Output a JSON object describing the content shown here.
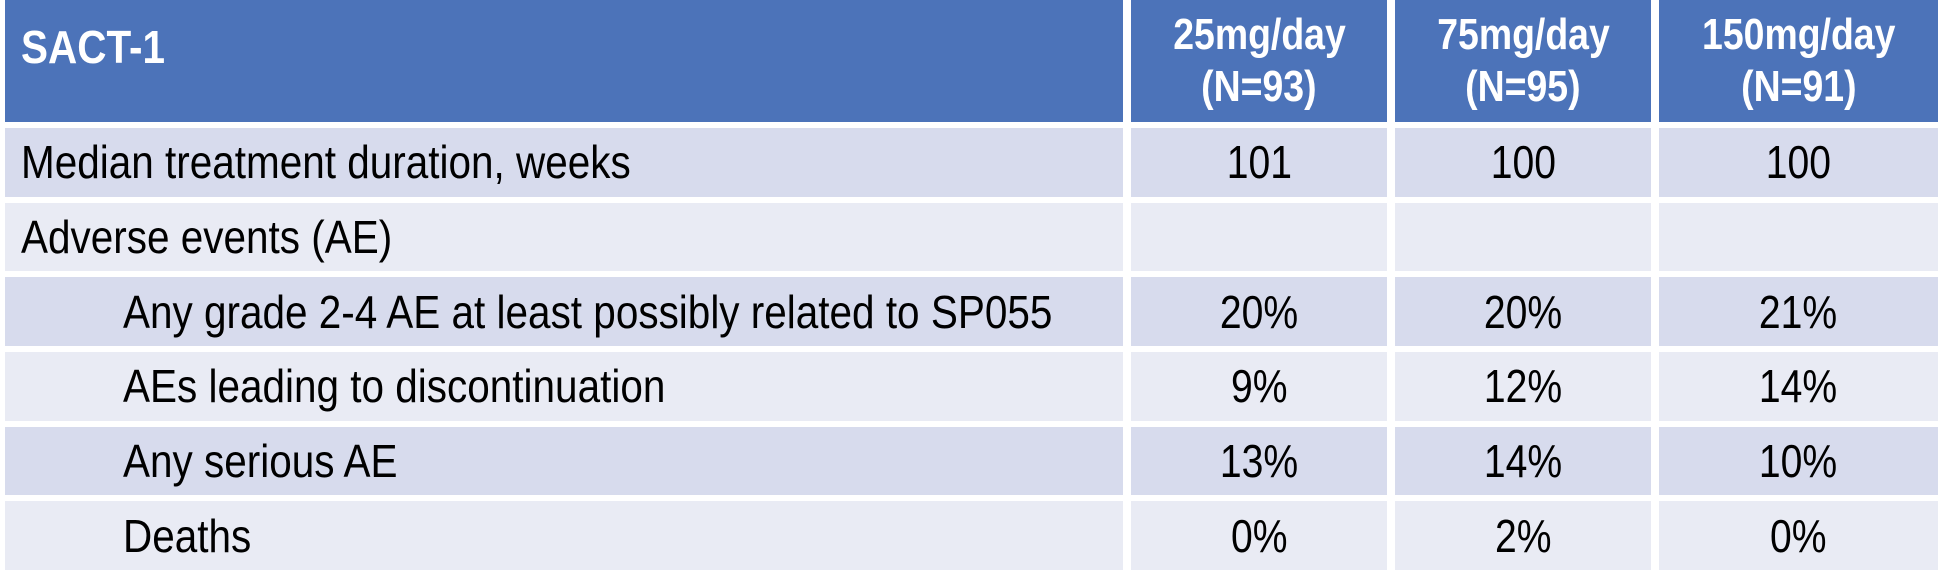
{
  "table": {
    "title": "SACT-1",
    "columns": [
      {
        "line1": "25mg/day",
        "line2": "(N=93)"
      },
      {
        "line1": "75mg/day",
        "line2": "(N=95)"
      },
      {
        "line1": "150mg/day",
        "line2": "(N=91)"
      }
    ],
    "rows": [
      {
        "label": "Median treatment duration, weeks",
        "indent": false,
        "values": [
          "101",
          "100",
          "100"
        ]
      },
      {
        "label": "Adverse events (AE)",
        "indent": false,
        "values": [
          "",
          "",
          ""
        ]
      },
      {
        "label": "Any grade 2-4 AE at least possibly related to SP055",
        "indent": true,
        "values": [
          "20%",
          "20%",
          "21%"
        ]
      },
      {
        "label": "AEs leading to discontinuation",
        "indent": true,
        "values": [
          "9%",
          "12%",
          "14%"
        ]
      },
      {
        "label": "Any serious AE",
        "indent": true,
        "values": [
          "13%",
          "14%",
          "10%"
        ]
      },
      {
        "label": "Deaths",
        "indent": true,
        "values": [
          "0%",
          "2%",
          "0%"
        ]
      }
    ],
    "colors": {
      "header_bg": "#4C73B9",
      "header_text": "#FFFFFF",
      "row_band_dark": "#D7DBED",
      "row_band_light": "#E9EBF4",
      "gutter": "#FFFFFF",
      "body_text": "#000000"
    }
  },
  "chart_data": {
    "type": "table",
    "title": "SACT-1",
    "columns": [
      "25mg/day (N=93)",
      "75mg/day (N=95)",
      "150mg/day (N=91)"
    ],
    "rows": [
      {
        "label": "Median treatment duration, weeks",
        "values": [
          "101",
          "100",
          "100"
        ]
      },
      {
        "label": "Adverse events (AE)",
        "values": [
          "",
          "",
          ""
        ]
      },
      {
        "label": "Any grade 2-4 AE at least possibly related to SP055",
        "values": [
          "20%",
          "20%",
          "21%"
        ]
      },
      {
        "label": "AEs leading to discontinuation",
        "values": [
          "9%",
          "12%",
          "14%"
        ]
      },
      {
        "label": "Any serious AE",
        "values": [
          "13%",
          "14%",
          "10%"
        ]
      },
      {
        "label": "Deaths",
        "values": [
          "0%",
          "2%",
          "0%"
        ]
      }
    ]
  }
}
